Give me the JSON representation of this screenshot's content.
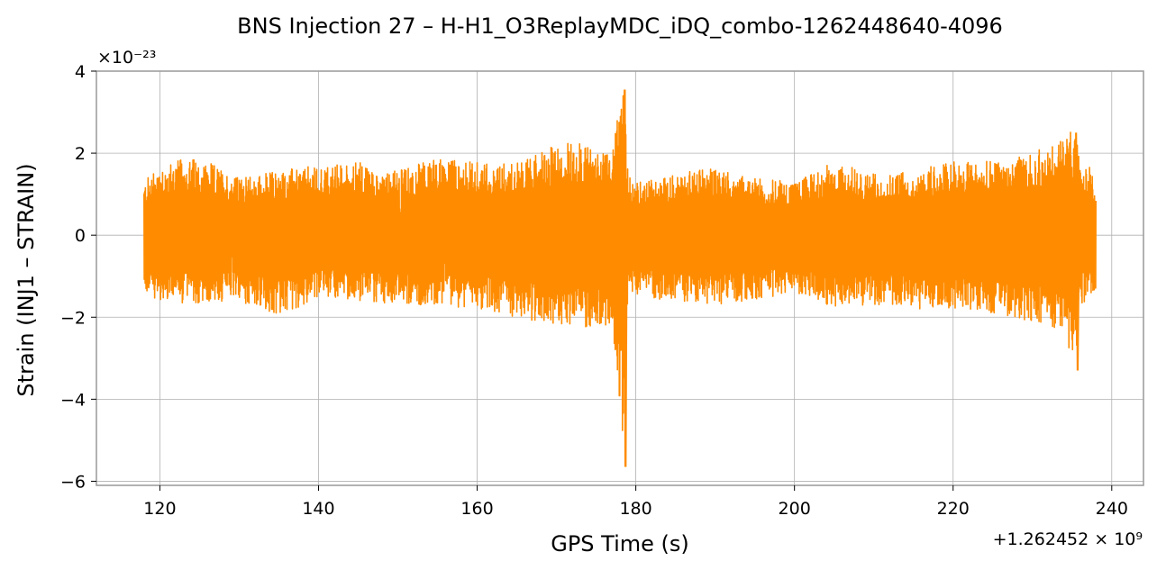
{
  "chart_data": {
    "type": "line",
    "title": "BNS Injection 27 – H-H1_O3ReplayMDC_iDQ_combo-1262448640-4096",
    "xlabel": "GPS Time (s)",
    "ylabel": "Strain (INJ1 – STRAIN)",
    "x_offset_label": "+1.262452 × 10⁹",
    "y_scale_label": "×10⁻²³",
    "xlim": [
      112,
      244
    ],
    "ylim": [
      -6.1,
      4.0
    ],
    "x_ticks": [
      120,
      140,
      160,
      180,
      200,
      220,
      240
    ],
    "x_tick_labels": [
      "120",
      "140",
      "160",
      "180",
      "200",
      "220",
      "240"
    ],
    "y_ticks": [
      -6,
      -4,
      -2,
      0,
      2,
      4
    ],
    "y_tick_labels": [
      "−6",
      "−4",
      "−2",
      "0",
      "2",
      "4"
    ],
    "grid": true,
    "line_color": "#ff8c00",
    "series": [
      {
        "name": "",
        "x_range": [
          118,
          238
        ],
        "envelope_x": [
          118,
          120,
          125,
          130,
          135,
          140,
          145,
          150,
          155,
          160,
          165,
          170,
          172,
          175,
          177,
          178.5,
          179,
          180,
          185,
          190,
          195,
          200,
          205,
          210,
          215,
          220,
          225,
          230,
          232,
          234,
          235.5,
          236,
          237,
          238
        ],
        "envelope_upper": [
          1.3,
          1.8,
          1.9,
          1.4,
          1.6,
          1.7,
          1.8,
          1.6,
          1.9,
          1.8,
          1.8,
          2.2,
          2.3,
          2.2,
          2.2,
          3.55,
          1.5,
          1.3,
          1.5,
          1.7,
          1.4,
          1.3,
          1.8,
          1.5,
          1.6,
          1.8,
          1.8,
          2.0,
          2.2,
          2.5,
          2.55,
          1.6,
          1.9,
          1.3
        ],
        "envelope_lower": [
          -1.4,
          -1.6,
          -1.7,
          -1.6,
          -2.0,
          -1.5,
          -1.6,
          -1.7,
          -1.7,
          -1.8,
          -2.0,
          -2.2,
          -2.3,
          -2.2,
          -2.2,
          -5.65,
          -1.6,
          -1.5,
          -1.6,
          -1.7,
          -1.6,
          -1.4,
          -1.8,
          -1.7,
          -1.8,
          -1.8,
          -1.9,
          -2.1,
          -2.2,
          -2.4,
          -3.3,
          -1.7,
          -1.6,
          -1.3
        ]
      }
    ]
  }
}
